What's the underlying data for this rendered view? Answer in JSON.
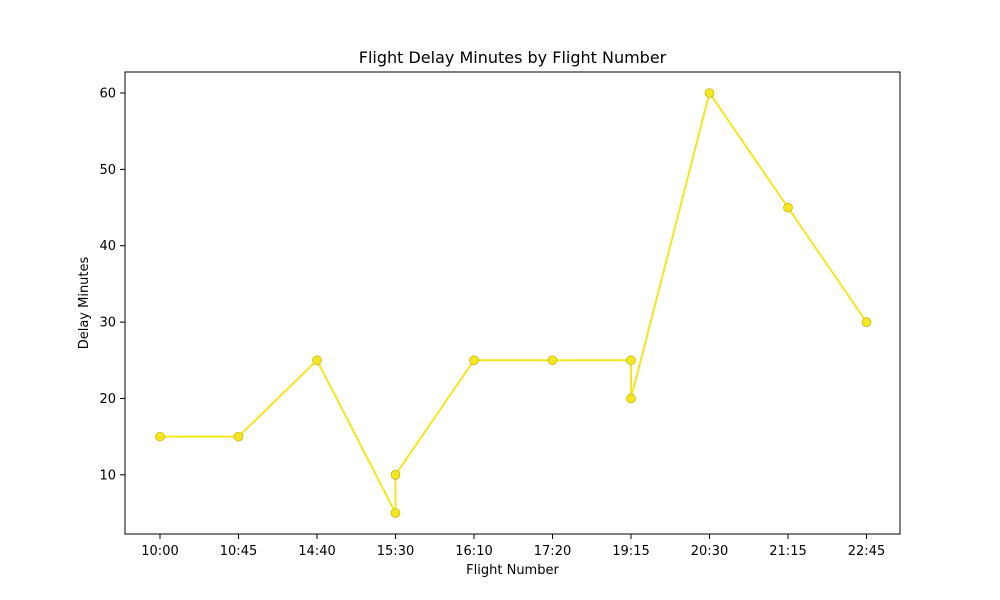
{
  "chart_data": {
    "type": "line",
    "title": "Flight Delay Minutes by Flight Number",
    "xlabel": "Flight Number",
    "ylabel": "Delay Minutes",
    "x_categories": [
      "10:00",
      "10:45",
      "14:40",
      "15:30",
      "16:10",
      "17:20",
      "19:15",
      "20:30",
      "21:15",
      "22:45"
    ],
    "points": [
      {
        "x": "10:00",
        "y": 15
      },
      {
        "x": "10:45",
        "y": 15
      },
      {
        "x": "14:40",
        "y": 25
      },
      {
        "x": "15:30",
        "y": 5
      },
      {
        "x": "15:30",
        "y": 10
      },
      {
        "x": "16:10",
        "y": 25
      },
      {
        "x": "17:20",
        "y": 25
      },
      {
        "x": "19:15",
        "y": 25
      },
      {
        "x": "19:15",
        "y": 20
      },
      {
        "x": "20:30",
        "y": 60
      },
      {
        "x": "21:15",
        "y": 45
      },
      {
        "x": "22:45",
        "y": 30
      }
    ],
    "ylim": [
      2.25,
      62.75
    ],
    "yticks": [
      10,
      20,
      30,
      40,
      50,
      60
    ],
    "grid": false,
    "colors": {
      "line": "#f5e61f",
      "marker_fill": "#f5e61f",
      "marker_edge": "#b8aa00"
    }
  }
}
